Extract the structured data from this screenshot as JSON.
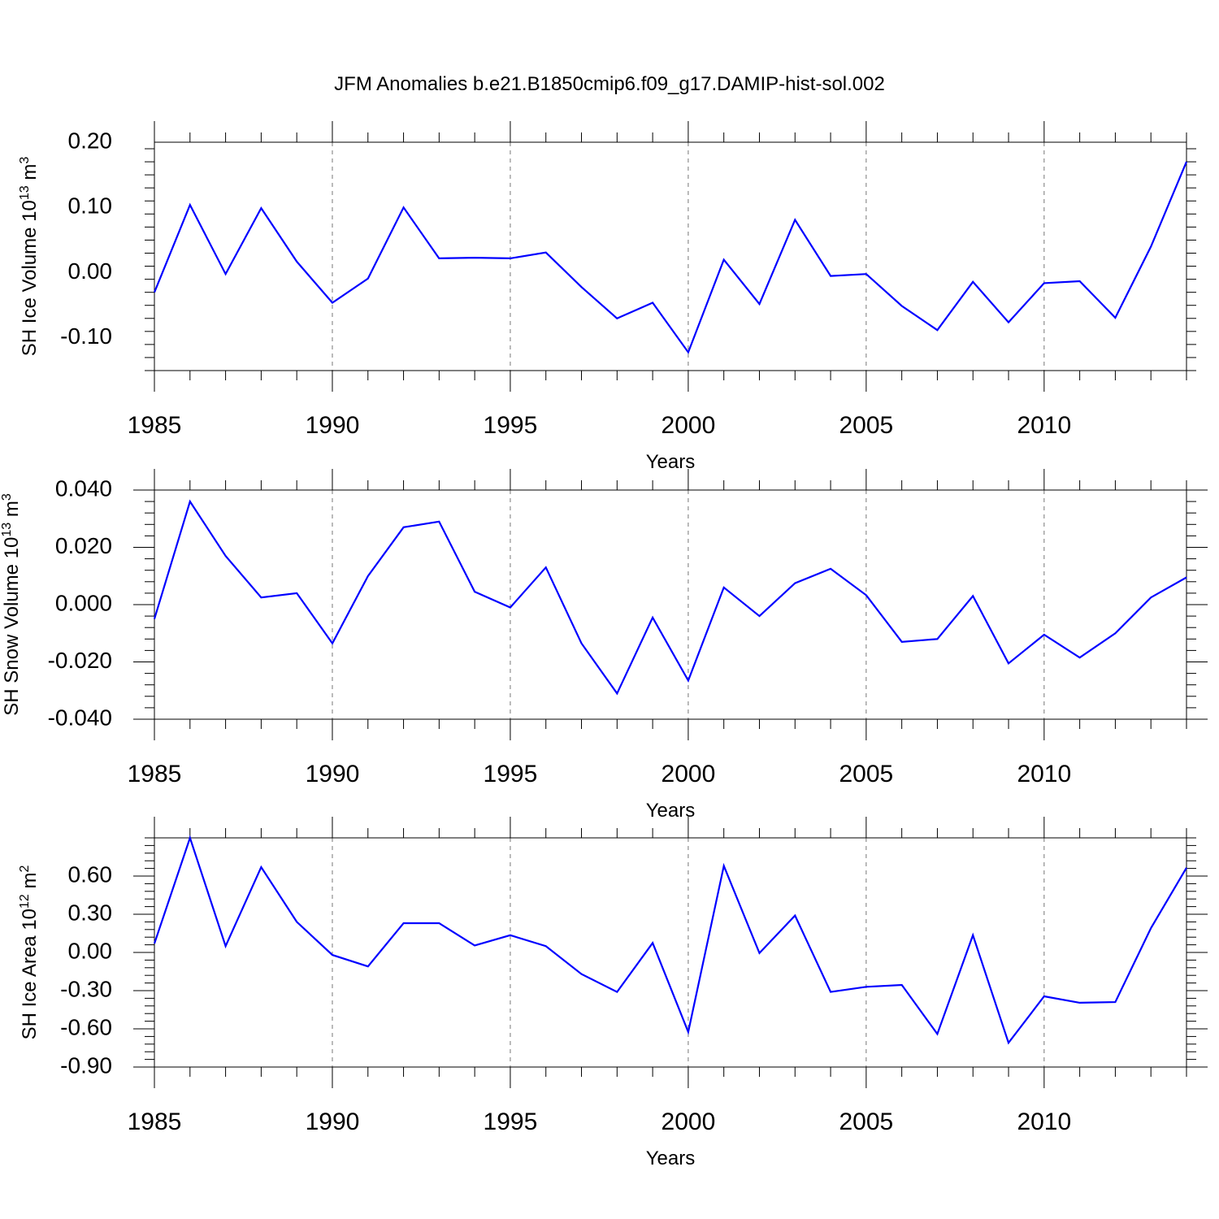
{
  "title": "JFM Anomalies b.e21.B1850cmip6.f09_g17.DAMIP-hist-sol.002",
  "chart_data": [
    {
      "type": "line",
      "ylabel": "SH Ice Volume 10",
      "ylabel_exp": "13",
      "ylabel_unit": " m",
      "ylabel_unit_exp": "3",
      "xlabel": "Years",
      "xlim": [
        1985,
        2014
      ],
      "ylim": [
        -0.15,
        0.2
      ],
      "yticks": [
        -0.1,
        0.0,
        0.1,
        0.2
      ],
      "ytick_labels": [
        "-0.10",
        "0.00",
        "0.10",
        "0.20"
      ],
      "xticks": [
        1985,
        1990,
        1995,
        2000,
        2005,
        2010
      ],
      "xtick_labels": [
        "1985",
        "1990",
        "1995",
        "2000",
        "2005",
        "2010"
      ],
      "x": [
        1985,
        1986,
        1987,
        1988,
        1989,
        1990,
        1991,
        1992,
        1993,
        1994,
        1995,
        1996,
        1997,
        1998,
        1999,
        2000,
        2001,
        2002,
        2003,
        2004,
        2005,
        2006,
        2007,
        2008,
        2009,
        2010,
        2011,
        2012,
        2013,
        2014
      ],
      "values": [
        -0.03,
        0.104,
        -0.002,
        0.099,
        0.017,
        -0.046,
        -0.009,
        0.1,
        0.022,
        0.023,
        0.022,
        0.031,
        -0.022,
        -0.07,
        -0.046,
        -0.122,
        0.02,
        -0.048,
        0.081,
        -0.005,
        -0.002,
        -0.051,
        -0.088,
        -0.014,
        -0.076,
        -0.016,
        -0.013,
        -0.069,
        0.04,
        0.17
      ]
    },
    {
      "type": "line",
      "ylabel": "SH Snow Volume 10",
      "ylabel_exp": "13",
      "ylabel_unit": " m",
      "ylabel_unit_exp": "3",
      "xlabel": "Years",
      "xlim": [
        1985,
        2014
      ],
      "ylim": [
        -0.04,
        0.04
      ],
      "yticks": [
        -0.04,
        -0.02,
        0.0,
        0.02,
        0.04
      ],
      "ytick_labels": [
        "-0.040",
        "-0.020",
        "0.000",
        "0.020",
        "0.040"
      ],
      "xticks": [
        1985,
        1990,
        1995,
        2000,
        2005,
        2010
      ],
      "xtick_labels": [
        "1985",
        "1990",
        "1995",
        "2000",
        "2005",
        "2010"
      ],
      "x": [
        1985,
        1986,
        1987,
        1988,
        1989,
        1990,
        1991,
        1992,
        1993,
        1994,
        1995,
        1996,
        1997,
        1998,
        1999,
        2000,
        2001,
        2002,
        2003,
        2004,
        2005,
        2006,
        2007,
        2008,
        2009,
        2010,
        2011,
        2012,
        2013,
        2014
      ],
      "values": [
        -0.005,
        0.036,
        0.017,
        0.0025,
        0.004,
        -0.0135,
        0.01,
        0.027,
        0.029,
        0.0045,
        -0.001,
        0.013,
        -0.0135,
        -0.031,
        -0.0045,
        -0.0265,
        0.006,
        -0.004,
        0.0075,
        0.0125,
        0.0033,
        -0.013,
        -0.012,
        0.003,
        -0.0205,
        -0.0105,
        -0.0185,
        -0.01,
        0.0025,
        0.0095
      ]
    },
    {
      "type": "line",
      "ylabel": "SH Ice Area 10",
      "ylabel_exp": "12",
      "ylabel_unit": " m",
      "ylabel_unit_exp": "2",
      "xlabel": "Years",
      "xlim": [
        1985,
        2014
      ],
      "ylim": [
        -0.9,
        0.9
      ],
      "yticks": [
        -0.9,
        -0.6,
        -0.3,
        0.0,
        0.3,
        0.6
      ],
      "ytick_labels": [
        "-0.90",
        "-0.60",
        "-0.30",
        "0.00",
        "0.30",
        "0.60"
      ],
      "xticks": [
        1985,
        1990,
        1995,
        2000,
        2005,
        2010
      ],
      "xtick_labels": [
        "1985",
        "1990",
        "1995",
        "2000",
        "2005",
        "2010"
      ],
      "x": [
        1985,
        1986,
        1987,
        1988,
        1989,
        1990,
        1991,
        1992,
        1993,
        1994,
        1995,
        1996,
        1997,
        1998,
        1999,
        2000,
        2001,
        2002,
        2003,
        2004,
        2005,
        2006,
        2007,
        2008,
        2009,
        2010,
        2011,
        2012,
        2013,
        2014
      ],
      "values": [
        0.07,
        0.9,
        0.05,
        0.67,
        0.24,
        -0.02,
        -0.11,
        0.23,
        0.23,
        0.055,
        0.135,
        0.05,
        -0.17,
        -0.31,
        0.075,
        -0.625,
        0.68,
        -0.005,
        0.29,
        -0.31,
        -0.27,
        -0.255,
        -0.64,
        0.135,
        -0.71,
        -0.345,
        -0.395,
        -0.39,
        0.19,
        0.665
      ]
    }
  ]
}
